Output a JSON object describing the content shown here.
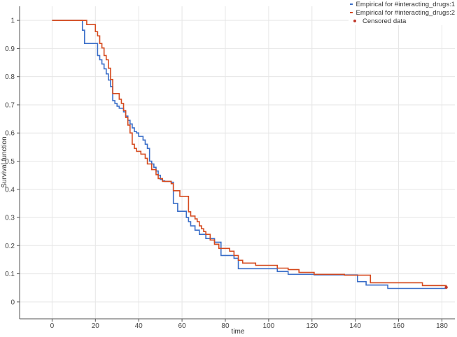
{
  "chart_data": {
    "type": "line",
    "step": true,
    "title": "",
    "xlabel": "time",
    "ylabel": "Survival function",
    "xlim": [
      -15,
      186
    ],
    "ylim": [
      -0.06,
      1.05
    ],
    "x_ticks": [
      0,
      20,
      40,
      60,
      80,
      100,
      120,
      140,
      160,
      180
    ],
    "y_ticks": [
      0,
      0.1,
      0.2,
      0.3,
      0.4,
      0.5,
      0.6,
      0.7,
      0.8,
      0.9,
      1
    ],
    "grid": true,
    "legend_position": "top-right",
    "series": [
      {
        "name": "Empirical for #interacting_drugs:1",
        "color": "#3a6ec8",
        "x": [
          0,
          14,
          15,
          21,
          22,
          23,
          24,
          25,
          26,
          27,
          28,
          29,
          30,
          31,
          33,
          34,
          35,
          36,
          37,
          38,
          39,
          40,
          42,
          43,
          44,
          45,
          46,
          47,
          48,
          49,
          50,
          51,
          52,
          55,
          56,
          58,
          62,
          63,
          64,
          66,
          68,
          71,
          75,
          78,
          84,
          86,
          104,
          109,
          121,
          141,
          145,
          155,
          182
        ],
        "y": [
          1,
          0.965,
          0.918,
          0.875,
          0.86,
          0.845,
          0.828,
          0.81,
          0.788,
          0.765,
          0.715,
          0.705,
          0.695,
          0.688,
          0.675,
          0.66,
          0.645,
          0.632,
          0.618,
          0.605,
          0.6,
          0.588,
          0.575,
          0.56,
          0.545,
          0.5,
          0.49,
          0.478,
          0.465,
          0.45,
          0.435,
          0.43,
          0.428,
          0.425,
          0.35,
          0.322,
          0.3,
          0.285,
          0.27,
          0.255,
          0.24,
          0.225,
          0.212,
          0.165,
          0.155,
          0.118,
          0.108,
          0.098,
          0.096,
          0.072,
          0.06,
          0.048,
          0.048
        ]
      },
      {
        "name": "Empirical for #interacting_drugs:2",
        "color": "#d54a1e",
        "x": [
          0,
          16,
          20,
          21,
          22,
          23,
          24,
          25,
          26,
          27,
          28,
          31,
          32,
          33,
          34,
          35,
          36,
          37,
          38,
          39,
          41,
          43,
          44,
          46,
          48,
          49,
          51,
          55,
          56,
          59,
          63,
          64,
          66,
          67,
          68,
          69,
          70,
          71,
          73,
          75,
          77,
          82,
          84,
          86,
          88,
          94,
          104,
          109,
          114,
          121,
          135,
          147,
          171,
          182
        ],
        "y": [
          1,
          0.985,
          0.96,
          0.945,
          0.918,
          0.902,
          0.875,
          0.86,
          0.83,
          0.79,
          0.74,
          0.72,
          0.705,
          0.68,
          0.655,
          0.628,
          0.6,
          0.56,
          0.545,
          0.535,
          0.525,
          0.51,
          0.49,
          0.47,
          0.452,
          0.438,
          0.428,
          0.42,
          0.395,
          0.375,
          0.32,
          0.305,
          0.295,
          0.285,
          0.27,
          0.26,
          0.25,
          0.24,
          0.22,
          0.205,
          0.19,
          0.18,
          0.165,
          0.148,
          0.138,
          0.13,
          0.12,
          0.115,
          0.105,
          0.098,
          0.095,
          0.068,
          0.058,
          0.055
        ]
      },
      {
        "name": "Censored data",
        "color": "#c0392b",
        "kind": "markers",
        "x": [
          182
        ],
        "y": [
          0.052
        ]
      }
    ]
  }
}
